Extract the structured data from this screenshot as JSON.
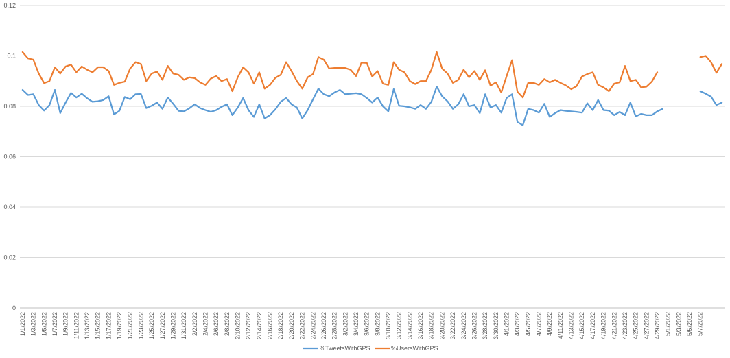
{
  "chart_data": {
    "type": "line",
    "title": "",
    "xlabel": "",
    "ylabel": "",
    "ylim": [
      0,
      0.12
    ],
    "y_ticks": [
      "0",
      "0.02",
      "0.04",
      "0.06",
      "0.08",
      "0.1",
      "0.12"
    ],
    "grid": "horizontal",
    "legend_position": "bottom",
    "x_tick_labels": [
      "1/1/2022",
      "1/3/2022",
      "1/5/2022",
      "1/7/2022",
      "1/9/2022",
      "1/11/2022",
      "1/13/2022",
      "1/15/2022",
      "1/17/2022",
      "1/19/2022",
      "1/21/2022",
      "1/23/2022",
      "1/25/2022",
      "1/27/2022",
      "1/29/2022",
      "1/31/2022",
      "2/2/2022",
      "2/4/2022",
      "2/6/2022",
      "2/8/2022",
      "2/10/2022",
      "2/12/2022",
      "2/14/2022",
      "2/16/2022",
      "2/18/2022",
      "2/20/2022",
      "2/22/2022",
      "2/24/2022",
      "2/26/2022",
      "2/28/2022",
      "3/2/2022",
      "3/4/2022",
      "3/6/2022",
      "3/8/2022",
      "3/10/2022",
      "3/12/2022",
      "3/14/2022",
      "3/16/2022",
      "3/18/2022",
      "3/20/2022",
      "3/22/2022",
      "3/24/2022",
      "3/26/2022",
      "3/28/2022",
      "3/30/2022",
      "4/1/2022",
      "4/3/2022",
      "4/5/2022",
      "4/7/2022",
      "4/9/2022",
      "4/11/2022",
      "4/13/2022",
      "4/15/2022",
      "4/17/2022",
      "4/19/2022",
      "4/21/2022",
      "4/23/2022",
      "4/25/2022",
      "4/27/2022",
      "4/29/2022",
      "5/1/2022",
      "5/3/2022",
      "5/5/2022",
      "5/7/2022"
    ],
    "series": [
      {
        "name": "%TweetsWithGPS",
        "color": "#5b9bd5",
        "values": [
          0.0865,
          0.0845,
          0.0848,
          0.0805,
          0.0783,
          0.0805,
          0.0865,
          0.0773,
          0.0815,
          0.0853,
          0.0835,
          0.085,
          0.0832,
          0.0818,
          0.082,
          0.0825,
          0.084,
          0.0768,
          0.0782,
          0.0837,
          0.0828,
          0.0848,
          0.0849,
          0.0793,
          0.0802,
          0.0815,
          0.079,
          0.0835,
          0.081,
          0.0782,
          0.078,
          0.0792,
          0.0808,
          0.0793,
          0.0785,
          0.0778,
          0.0785,
          0.0798,
          0.0808,
          0.0765,
          0.0795,
          0.0833,
          0.0785,
          0.0758,
          0.0808,
          0.0752,
          0.0765,
          0.0788,
          0.0818,
          0.0833,
          0.0808,
          0.0795,
          0.0752,
          0.0785,
          0.0828,
          0.087,
          0.0848,
          0.084,
          0.0855,
          0.0865,
          0.0848,
          0.085,
          0.0852,
          0.0848,
          0.0833,
          0.0815,
          0.0835,
          0.08,
          0.078,
          0.0868,
          0.0802,
          0.08,
          0.0796,
          0.079,
          0.0805,
          0.079,
          0.0818,
          0.0878,
          0.084,
          0.082,
          0.079,
          0.0808,
          0.0848,
          0.08,
          0.0805,
          0.0773,
          0.0848,
          0.0795,
          0.0805,
          0.0775,
          0.0833,
          0.0848,
          0.0738,
          0.0725,
          0.079,
          0.0785,
          0.0775,
          0.081,
          0.0758,
          0.0773,
          0.0785,
          0.0782,
          0.078,
          0.0778,
          0.0775,
          0.0812,
          0.0785,
          0.0825,
          0.0785,
          0.0783,
          0.0765,
          0.0778,
          0.0765,
          0.0815,
          0.076,
          0.077,
          0.0765,
          0.0765,
          0.078,
          0.079,
          null,
          null,
          null,
          null,
          null,
          null,
          0.086,
          0.085,
          0.0838,
          0.0805,
          0.0815
        ]
      },
      {
        "name": "%UsersWithGPS",
        "color": "#ed7d31",
        "values": [
          0.1015,
          0.099,
          0.0985,
          0.093,
          0.0892,
          0.09,
          0.0955,
          0.093,
          0.0958,
          0.0965,
          0.0935,
          0.0958,
          0.0945,
          0.0935,
          0.0955,
          0.0955,
          0.094,
          0.0885,
          0.0893,
          0.0898,
          0.095,
          0.0975,
          0.0968,
          0.09,
          0.093,
          0.0938,
          0.0905,
          0.096,
          0.093,
          0.0925,
          0.0905,
          0.0915,
          0.0912,
          0.0895,
          0.0885,
          0.091,
          0.092,
          0.09,
          0.0908,
          0.086,
          0.0915,
          0.0955,
          0.0935,
          0.089,
          0.0935,
          0.087,
          0.0885,
          0.0913,
          0.0925,
          0.0975,
          0.094,
          0.09,
          0.087,
          0.0915,
          0.0928,
          0.0995,
          0.0985,
          0.095,
          0.0952,
          0.0952,
          0.0952,
          0.0945,
          0.092,
          0.0973,
          0.0972,
          0.0918,
          0.094,
          0.089,
          0.0885,
          0.0975,
          0.0945,
          0.0935,
          0.09,
          0.0888,
          0.09,
          0.09,
          0.0945,
          0.1015,
          0.095,
          0.093,
          0.0893,
          0.0905,
          0.0945,
          0.0915,
          0.094,
          0.0905,
          0.0943,
          0.0882,
          0.0895,
          0.0855,
          0.092,
          0.0983,
          0.0858,
          0.0835,
          0.0893,
          0.0893,
          0.0885,
          0.0908,
          0.0895,
          0.0905,
          0.0893,
          0.0883,
          0.0868,
          0.088,
          0.0918,
          0.0928,
          0.0935,
          0.0885,
          0.0875,
          0.086,
          0.089,
          0.0895,
          0.096,
          0.09,
          0.0905,
          0.0875,
          0.0878,
          0.0898,
          0.0935,
          null,
          null,
          null,
          null,
          null,
          null,
          null,
          0.0995,
          0.1,
          0.0975,
          0.0933,
          0.0968
        ]
      }
    ]
  }
}
